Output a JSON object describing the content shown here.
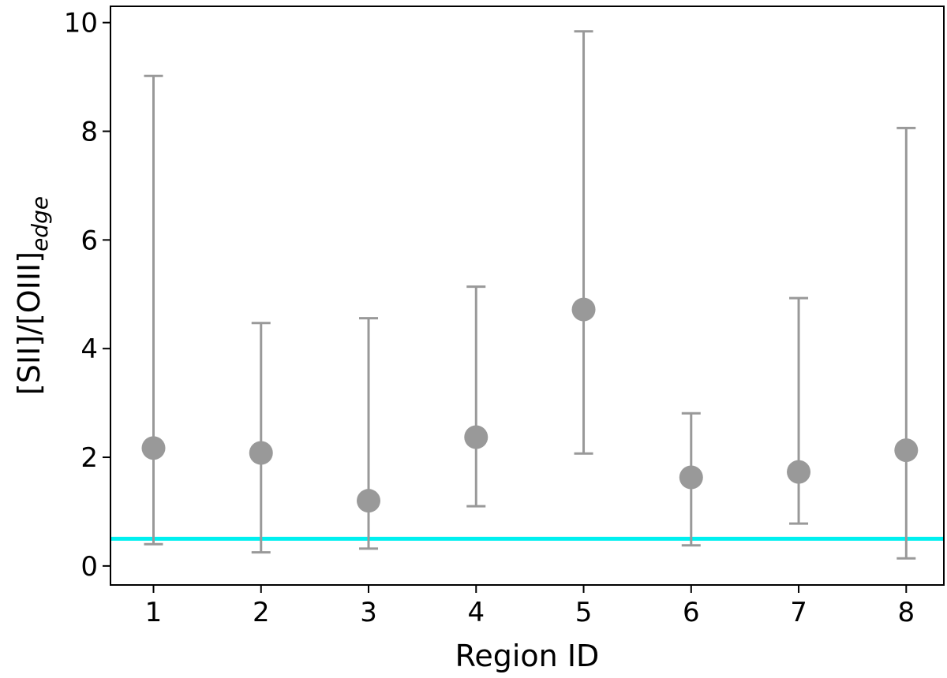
{
  "chart_data": {
    "type": "scatter",
    "title": "",
    "xlabel": "Region ID",
    "ylabel": {
      "main": "[SII]/[OIII]",
      "subscript": "edge"
    },
    "xlim": [
      0.6,
      8.35
    ],
    "ylim": [
      -0.35,
      10.3
    ],
    "xticks": [
      1,
      2,
      3,
      4,
      5,
      6,
      7,
      8
    ],
    "yticks": [
      0,
      2,
      4,
      6,
      8,
      10
    ],
    "grid": false,
    "legend": "none",
    "series": [
      {
        "marker_color": "#999999",
        "errorbar_color": "#999999",
        "points": [
          {
            "x": 1,
            "y": 2.17,
            "y_low": 0.4,
            "y_high": 9.02
          },
          {
            "x": 2,
            "y": 2.08,
            "y_low": 0.25,
            "y_high": 4.47
          },
          {
            "x": 3,
            "y": 1.2,
            "y_low": 0.32,
            "y_high": 4.56
          },
          {
            "x": 4,
            "y": 2.37,
            "y_low": 1.1,
            "y_high": 5.14
          },
          {
            "x": 5,
            "y": 4.72,
            "y_low": 2.07,
            "y_high": 9.84
          },
          {
            "x": 6,
            "y": 1.63,
            "y_low": 0.38,
            "y_high": 2.81
          },
          {
            "x": 7,
            "y": 1.73,
            "y_low": 0.78,
            "y_high": 4.93
          },
          {
            "x": 8,
            "y": 2.13,
            "y_low": 0.14,
            "y_high": 8.06
          }
        ]
      }
    ],
    "reference_lines": [
      {
        "orientation": "horizontal",
        "y": 0.5,
        "color": "#00f0f0"
      }
    ]
  }
}
